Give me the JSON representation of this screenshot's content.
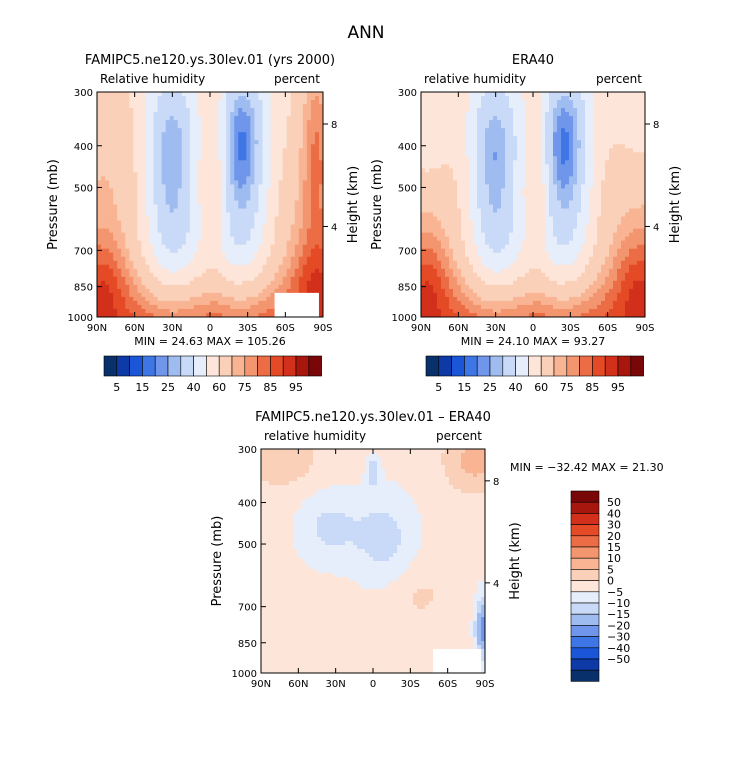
{
  "page_title": "ANN",
  "colors": {
    "rh_scale": [
      "#08306b",
      "#0d3aa6",
      "#1b55d8",
      "#3f76e6",
      "#6f96ea",
      "#9fbcf1",
      "#c8daf7",
      "#e6eefb",
      "#fde6d9",
      "#fbd0b8",
      "#f8b493",
      "#f39670",
      "#ec6d45",
      "#e44a25",
      "#d2301a",
      "#a8170e",
      "#7a0707"
    ],
    "diff_scale": [
      "#08306b",
      "#0d3aa6",
      "#1b55d8",
      "#3f76e6",
      "#6f96ea",
      "#9fbcf1",
      "#c8daf7",
      "#e6eefb",
      "#fde6d9",
      "#fbd0b8",
      "#f8b493",
      "#f39670",
      "#ec6d45",
      "#e44a25",
      "#d2301a",
      "#a8170e",
      "#7a0707"
    ],
    "missing": "#ffffff"
  },
  "chart_data": [
    {
      "id": "model",
      "type": "heatmap",
      "title": "FAMIPC5.ne120.ys.30lev.01 (yrs 2000)",
      "left_label": "Relative humidity",
      "right_label": "percent",
      "ylabel": "Pressure (mb)",
      "y2label": "Height (km)",
      "x": [
        "90N",
        "60N",
        "30N",
        "0",
        "30S",
        "60S",
        "90S"
      ],
      "pressure_levels": [
        300,
        400,
        500,
        700,
        850,
        1000
      ],
      "height_ticks": [
        "8",
        "4"
      ],
      "stats": "MIN =  24.63   MAX = 105.26",
      "levels": [
        5,
        10,
        15,
        20,
        25,
        30,
        40,
        50,
        60,
        70,
        75,
        80,
        85,
        90,
        95,
        100
      ],
      "labelbar_labels": [
        "5",
        "15",
        "25",
        "40",
        "60",
        "75",
        "85",
        "95"
      ]
    },
    {
      "id": "obs",
      "type": "heatmap",
      "title": "ERA40",
      "left_label": "relative humidity",
      "right_label": "percent",
      "ylabel": "Pressure (mb)",
      "y2label": "Height (km)",
      "x": [
        "90N",
        "60N",
        "30N",
        "0",
        "30S",
        "60S",
        "90S"
      ],
      "pressure_levels": [
        300,
        400,
        500,
        700,
        850,
        1000
      ],
      "height_ticks": [
        "8",
        "4"
      ],
      "stats": "MIN =  24.10   MAX =  93.27",
      "levels": [
        5,
        10,
        15,
        20,
        25,
        30,
        40,
        50,
        60,
        70,
        75,
        80,
        85,
        90,
        95,
        100
      ],
      "labelbar_labels": [
        "5",
        "15",
        "25",
        "40",
        "60",
        "75",
        "85",
        "95"
      ]
    },
    {
      "id": "diff",
      "type": "heatmap",
      "title": "FAMIPC5.ne120.ys.30lev.01 – ERA40",
      "left_label": "relative humidity",
      "right_label": "percent",
      "ylabel": "Pressure (mb)",
      "y2label": "Height (km)",
      "x": [
        "90N",
        "60N",
        "30N",
        "0",
        "30S",
        "60S",
        "90S"
      ],
      "pressure_levels": [
        300,
        400,
        500,
        700,
        850,
        1000
      ],
      "height_ticks": [
        "8",
        "4"
      ],
      "stats": "MIN = −32.42   MAX =  21.30",
      "levels": [
        -50,
        -40,
        -30,
        -20,
        -15,
        -10,
        -5,
        0,
        5,
        10,
        15,
        20,
        30,
        40,
        50
      ],
      "labelbar_labels": [
        "50",
        "40",
        "30",
        "20",
        "15",
        "10",
        "5",
        "0",
        "−5",
        "−10",
        "−15",
        "−20",
        "−30",
        "−40",
        "−50"
      ]
    }
  ]
}
